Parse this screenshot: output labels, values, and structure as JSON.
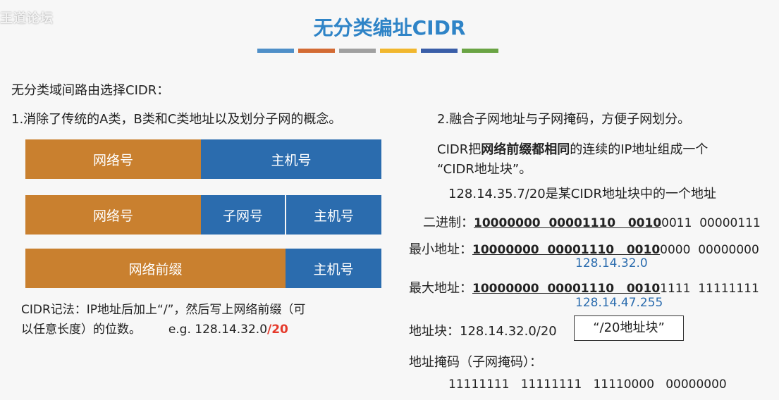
{
  "watermark": "王道论坛",
  "title": "无分类编址CIDR",
  "colorbar": [
    "#4f8fc8",
    "#d36b34",
    "#a0a0a0",
    "#f1b72e",
    "#3a5ea8",
    "#6aa444"
  ],
  "intro": "无分类域间路由选择CIDR：",
  "point1": "1.消除了传统的A类，B类和C类地址以及划分子网的概念。",
  "point2": "2.融合子网地址与子网掩码，方便子网划分。",
  "diagram": {
    "row1": {
      "net": "网络号",
      "host": "主机号"
    },
    "row2": {
      "net": "网络号",
      "subnet": "子网号",
      "host": "主机号"
    },
    "row3": {
      "prefix": "网络前缀",
      "host": "主机号"
    }
  },
  "notation_line1": "CIDR记法：IP地址后加上“/”，然后写上网络前缀（可",
  "notation_line2": "以任意长度）的位数。",
  "example_prefix": "e.g. 128.14.32.0",
  "example_suffix": "/20",
  "cidr_desc_pre": "CIDR把",
  "cidr_desc_bold": "网络前缀都相同",
  "cidr_desc_post": "的连续的IP地址组成一个",
  "cidr_desc_line2": "“CIDR地址块”。",
  "example_addr": "128.14.35.7/20是某CIDR地址块中的一个地址",
  "binary": {
    "label": "二进制：",
    "bold": "10000000  00001110   0010",
    "rest": "0011  00000111"
  },
  "min": {
    "label": "最小地址：",
    "bold": "10000000  00001110   0010",
    "rest": "0000  00000000",
    "ip": "128.14.32.0"
  },
  "max": {
    "label": "最大地址：",
    "bold": "10000000  00001110   0010",
    "rest": "1111  11111111",
    "ip": "128.14.47.255"
  },
  "block": {
    "label": "地址块：128.14.32.0/20",
    "framed": "“/20地址块”"
  },
  "mask_label": "地址掩码（子网掩码）：",
  "mask_value": "11111111   11111111   11110000   00000000"
}
